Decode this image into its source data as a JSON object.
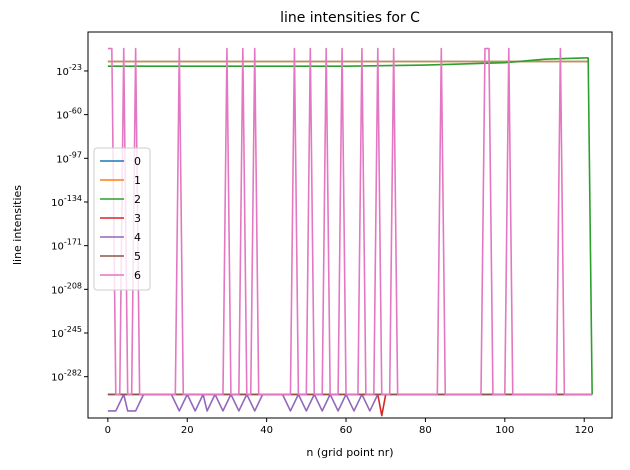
{
  "chart_data": {
    "type": "line",
    "title": "line intensities for C",
    "xlabel": "n (grid point nr)",
    "ylabel": "line intensities",
    "y_scale": "log",
    "xlim": [
      -5,
      127
    ],
    "ylim_exponent": [
      -317,
      10
    ],
    "x_ticks": [
      {
        "value": 0,
        "label": "0"
      },
      {
        "value": 20,
        "label": "20"
      },
      {
        "value": 40,
        "label": "40"
      },
      {
        "value": 60,
        "label": "60"
      },
      {
        "value": 80,
        "label": "80"
      },
      {
        "value": 100,
        "label": "100"
      },
      {
        "value": 120,
        "label": "120"
      }
    ],
    "y_ticks": [
      {
        "exponent": -23,
        "label": "-23"
      },
      {
        "exponent": -60,
        "label": "-60"
      },
      {
        "exponent": -97,
        "label": "-97"
      },
      {
        "exponent": -134,
        "label": "-134"
      },
      {
        "exponent": -171,
        "label": "-171"
      },
      {
        "exponent": -208,
        "label": "-208"
      },
      {
        "exponent": -245,
        "label": "-245"
      },
      {
        "exponent": -282,
        "label": "-282"
      }
    ],
    "legend_position": "center-left",
    "grid": false,
    "series": [
      {
        "name": "0",
        "color": "#1f77b4",
        "points": [
          [
            0,
            -15
          ],
          [
            121,
            -15
          ]
        ]
      },
      {
        "name": "1",
        "color": "#ff7f0e",
        "points": [
          [
            0,
            -15
          ],
          [
            121,
            -15
          ]
        ]
      },
      {
        "name": "2",
        "color": "#2ca02c",
        "points": [
          [
            0,
            -19
          ],
          [
            60,
            -19
          ],
          [
            80,
            -18
          ],
          [
            100,
            -16
          ],
          [
            110,
            -13
          ],
          [
            120,
            -12
          ],
          [
            121,
            -12
          ],
          [
            122,
            -297
          ]
        ]
      },
      {
        "name": "3",
        "color": "#d62728",
        "points": [
          [
            0,
            -297
          ],
          [
            68,
            -297
          ],
          [
            69,
            -315
          ],
          [
            70,
            -297
          ],
          [
            122,
            -297
          ]
        ]
      },
      {
        "name": "4",
        "color": "#9467bd",
        "points": [
          [
            0,
            -311
          ],
          [
            2,
            -311
          ],
          [
            4,
            -297
          ],
          [
            5,
            -311
          ],
          [
            7,
            -311
          ],
          [
            9,
            -297
          ],
          [
            16,
            -297
          ],
          [
            18,
            -311
          ],
          [
            20,
            -297
          ],
          [
            22,
            -311
          ],
          [
            24,
            -297
          ],
          [
            25,
            -311
          ],
          [
            27,
            -297
          ],
          [
            29,
            -311
          ],
          [
            31,
            -297
          ],
          [
            33,
            -311
          ],
          [
            35,
            -297
          ],
          [
            37,
            -311
          ],
          [
            39,
            -297
          ],
          [
            44,
            -297
          ],
          [
            46,
            -311
          ],
          [
            48,
            -297
          ],
          [
            50,
            -311
          ],
          [
            52,
            -297
          ],
          [
            54,
            -311
          ],
          [
            56,
            -297
          ],
          [
            58,
            -311
          ],
          [
            60,
            -297
          ],
          [
            62,
            -311
          ],
          [
            64,
            -297
          ],
          [
            66,
            -311
          ],
          [
            68,
            -297
          ],
          [
            70,
            -297
          ],
          [
            72,
            -297
          ],
          [
            122,
            -297
          ]
        ]
      },
      {
        "name": "5",
        "color": "#8c564b",
        "points": [
          [
            0,
            -297
          ],
          [
            122,
            -297
          ]
        ]
      },
      {
        "name": "6",
        "color": "#e377c2",
        "points": [
          [
            0,
            -4
          ],
          [
            1,
            -4
          ],
          [
            2,
            -297
          ],
          [
            3,
            -297
          ],
          [
            4,
            -4
          ],
          [
            5,
            -297
          ],
          [
            6,
            -297
          ],
          [
            7,
            -4
          ],
          [
            8,
            -297
          ],
          [
            17,
            -297
          ],
          [
            18,
            -4
          ],
          [
            19,
            -297
          ],
          [
            29,
            -297
          ],
          [
            30,
            -4
          ],
          [
            31,
            -297
          ],
          [
            33,
            -297
          ],
          [
            34,
            -4
          ],
          [
            35,
            -297
          ],
          [
            36,
            -297
          ],
          [
            37,
            -4
          ],
          [
            38,
            -297
          ],
          [
            46,
            -297
          ],
          [
            47,
            -4
          ],
          [
            48,
            -297
          ],
          [
            50,
            -297
          ],
          [
            51,
            -4
          ],
          [
            52,
            -297
          ],
          [
            54,
            -297
          ],
          [
            55,
            -4
          ],
          [
            56,
            -297
          ],
          [
            58,
            -297
          ],
          [
            59,
            -4
          ],
          [
            60,
            -297
          ],
          [
            63,
            -297
          ],
          [
            64,
            -4
          ],
          [
            65,
            -297
          ],
          [
            67,
            -297
          ],
          [
            68,
            -4
          ],
          [
            69,
            -297
          ],
          [
            71,
            -297
          ],
          [
            72,
            -4
          ],
          [
            73,
            -297
          ],
          [
            83,
            -297
          ],
          [
            84,
            -4
          ],
          [
            85,
            -297
          ],
          [
            94,
            -297
          ],
          [
            95,
            -4
          ],
          [
            96,
            -4
          ],
          [
            97,
            -297
          ],
          [
            100,
            -297
          ],
          [
            101,
            -4
          ],
          [
            102,
            -297
          ],
          [
            113,
            -297
          ],
          [
            114,
            -4
          ],
          [
            115,
            -297
          ],
          [
            122,
            -297
          ]
        ]
      }
    ]
  }
}
